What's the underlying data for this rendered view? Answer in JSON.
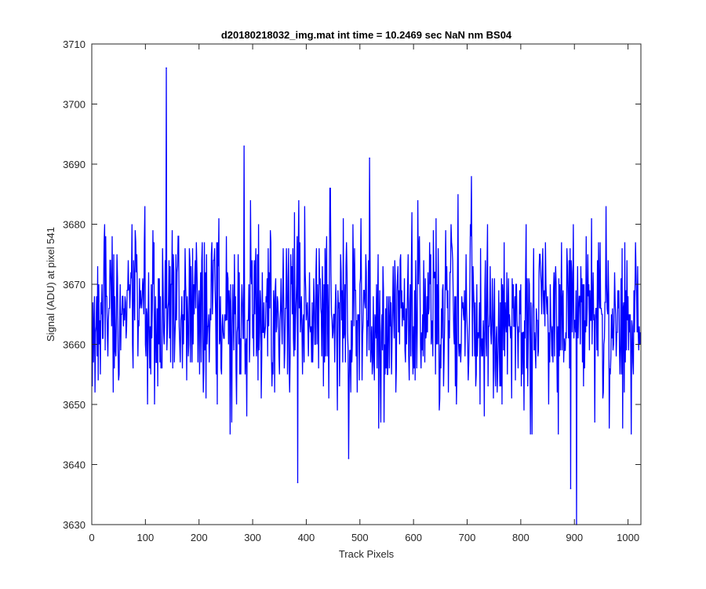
{
  "chart_data": {
    "type": "line",
    "title": "d20180218032_img.mat int time = 10.2469 sec  NaN nm BS04",
    "xlabel": "Track Pixels",
    "ylabel": "Signal (ADU) at pixel 541",
    "xlim": [
      0,
      1024
    ],
    "ylim": [
      3630,
      3710
    ],
    "xticks": [
      0,
      100,
      200,
      300,
      400,
      500,
      600,
      700,
      800,
      900,
      1000
    ],
    "yticks": [
      3630,
      3640,
      3650,
      3660,
      3670,
      3680,
      3690,
      3700,
      3710
    ],
    "grid": false,
    "line_color": "#0000ff",
    "n_points": 1024,
    "summary": {
      "typical_range": [
        3645,
        3685
      ],
      "mean_level": 3665,
      "notable_points": [
        {
          "x": 138,
          "y": 3706
        },
        {
          "x": 283,
          "y": 3693
        },
        {
          "x": 517,
          "y": 3691
        },
        {
          "x": 383,
          "y": 3637
        },
        {
          "x": 478,
          "y": 3641
        },
        {
          "x": 892,
          "y": 3636
        },
        {
          "x": 903,
          "y": 3630
        }
      ]
    }
  }
}
